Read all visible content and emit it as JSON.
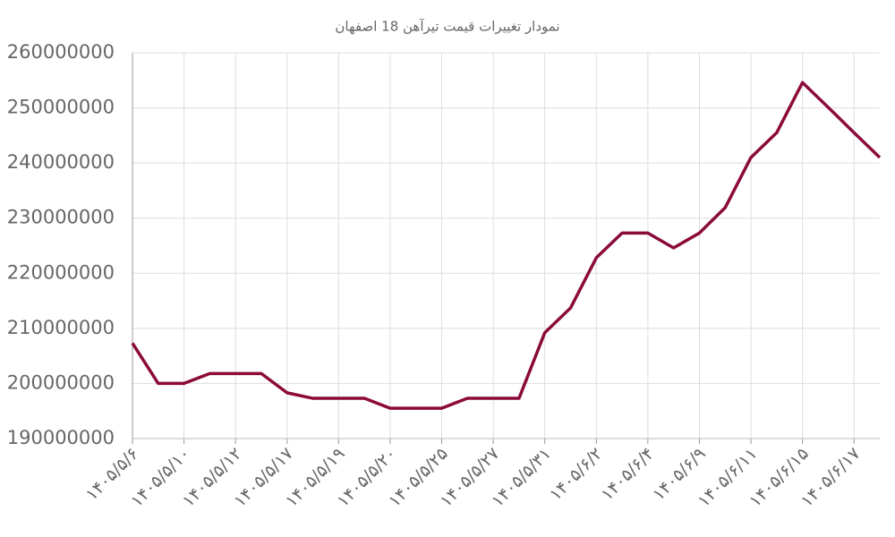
{
  "chart_data": {
    "type": "line",
    "title": "نمودار تغییرات قیمت تیرآهن 18 اصفهان",
    "categories": [
      "۱۴۰۵/۵/۶",
      null,
      "۱۴۰۵/۵/۱۰",
      null,
      "۱۴۰۵/۵/۱۲",
      null,
      "۱۴۰۵/۵/۱۷",
      null,
      "۱۴۰۵/۵/۱۹",
      null,
      "۱۴۰۵/۵/۲۰",
      null,
      "۱۴۰۵/۵/۲۵",
      null,
      "۱۴۰۵/۵/۲۷",
      null,
      "۱۴۰۵/۵/۳۱",
      null,
      "۱۴۰۵/۶/۲",
      null,
      "۱۴۰۵/۶/۴",
      null,
      "۱۴۰۵/۶/۹",
      null,
      "۱۴۰۵/۶/۱۱",
      null,
      "۱۴۰۵/۶/۱۵",
      null,
      "۱۴۰۵/۶/۱۷",
      null
    ],
    "values": [
      207300000,
      200000000,
      200000000,
      201800000,
      201800000,
      201800000,
      198300000,
      197300000,
      197300000,
      197300000,
      195500000,
      195500000,
      195500000,
      197300000,
      197300000,
      197300000,
      209200000,
      213700000,
      222800000,
      227300000,
      227300000,
      224600000,
      227300000,
      231900000,
      241000000,
      245500000,
      254600000,
      250100000,
      245500000,
      241000000
    ],
    "color": "#8b0a3a",
    "ylim": [
      190000000,
      260000000
    ],
    "yticks": [
      190000000,
      200000000,
      210000000,
      220000000,
      230000000,
      240000000,
      250000000,
      260000000
    ],
    "grid": true
  }
}
